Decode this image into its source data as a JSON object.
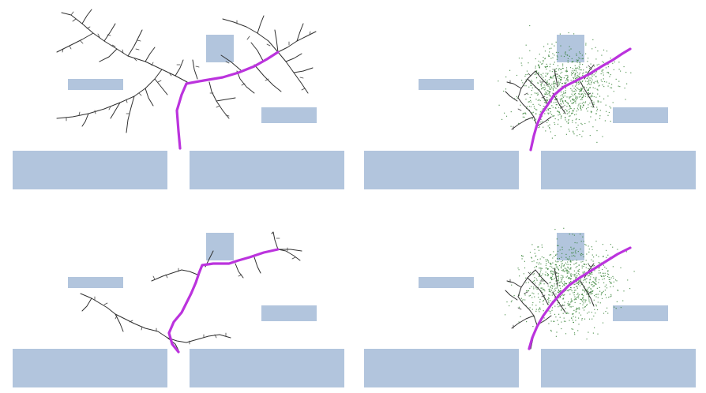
{
  "figure": {
    "panels": [
      {
        "id": "top-left",
        "samples": false
      },
      {
        "id": "top-right",
        "samples": true
      },
      {
        "id": "bottom-left",
        "samples": false
      },
      {
        "id": "bottom-right",
        "samples": true
      }
    ]
  },
  "colors": {
    "obstacle": "#b2c5dd",
    "tree": "#2f2f2f",
    "path": "#bb33dd",
    "samples": "#2a7a2a",
    "background": "#ffffff"
  }
}
